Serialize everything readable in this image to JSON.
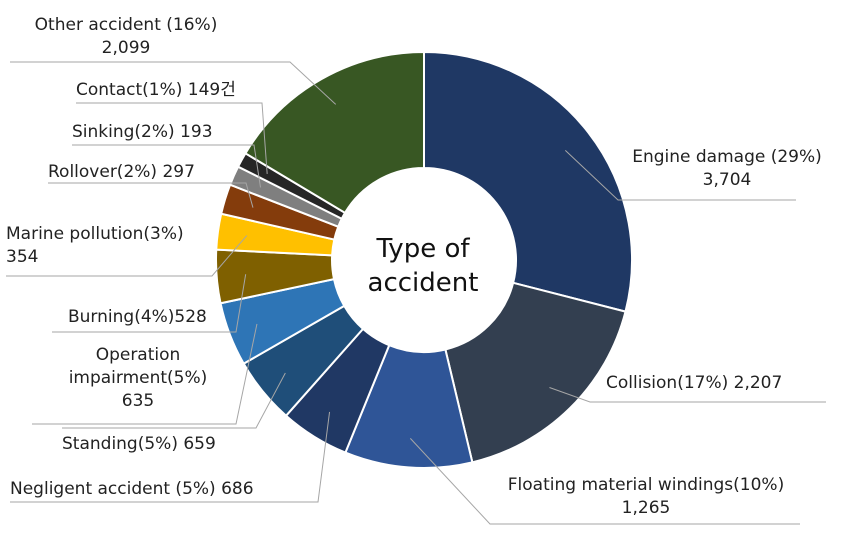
{
  "chart_data": {
    "type": "pie",
    "title": "Type of accident",
    "categories": [
      "Engine damage",
      "Collision",
      "Floating material windings",
      "Negligent accident",
      "Standing",
      "Operation impairment",
      "Burning",
      "Marine pollution",
      "Rollover",
      "Sinking",
      "Contact",
      "Other accident"
    ],
    "values": [
      3704,
      2207,
      1265,
      686,
      659,
      635,
      528,
      354,
      297,
      193,
      149,
      2099
    ],
    "percents": [
      29,
      17,
      10,
      5,
      5,
      5,
      4,
      3,
      2,
      2,
      1,
      16
    ],
    "colors": [
      "#1f3864",
      "#333f50",
      "#2f5597",
      "#203864",
      "#1f4e79",
      "#2e75b6",
      "#7f6000",
      "#ffc000",
      "#843c0c",
      "#7f7f7f",
      "#262626",
      "#385723"
    ],
    "labels": [
      [
        "Engine damage (29%)",
        "3,704"
      ],
      [
        "Collision(17%) 2,207"
      ],
      [
        "Floating material windings(10%)",
        "1,265"
      ],
      [
        "Negligent accident (5%) 686"
      ],
      [
        "Standing(5%) 659"
      ],
      [
        "Operation",
        "impairment(5%)",
        "635"
      ],
      [
        "Burning(4%)528"
      ],
      [
        "Marine pollution(3%)",
        "354"
      ],
      [
        "Rollover(2%) 297"
      ],
      [
        "Sinking(2%) 193"
      ],
      [
        "Contact(1%) 149건"
      ],
      [
        "Other accident (16%)",
        "2,099"
      ]
    ]
  }
}
